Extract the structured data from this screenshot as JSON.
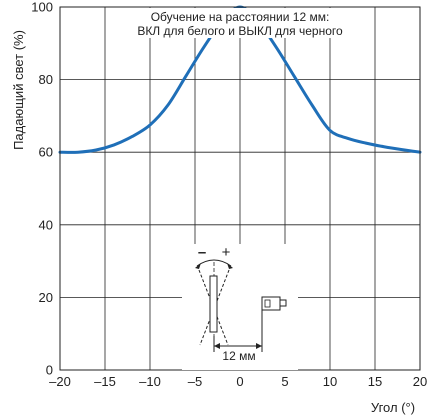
{
  "chart_data": {
    "type": "line",
    "title": "",
    "annotation_lines": [
      "Обучение на расстоянии 12 мм:",
      "ВКЛ для белого и ВЫКЛ для черного"
    ],
    "xlabel": "Угол (°)",
    "ylabel": "Падающий свет (%)",
    "xlim": [
      -20,
      20
    ],
    "ylim": [
      0,
      100
    ],
    "xticks": [
      -20,
      -15,
      -10,
      -5,
      0,
      5,
      10,
      15,
      20
    ],
    "yticks": [
      0,
      20,
      40,
      60,
      80,
      100
    ],
    "xtick_labels": [
      "–20",
      "–15",
      "–10",
      "–5",
      "0",
      "5",
      "10",
      "15",
      "20"
    ],
    "ytick_labels": [
      "0",
      "20",
      "40",
      "60",
      "80",
      "100"
    ],
    "grid": true,
    "series": [
      {
        "color": "#1f6fb8",
        "x": [
          -20,
          -18,
          -16,
          -14,
          -12,
          -10,
          -8,
          -6,
          -4,
          -2,
          0,
          2,
          4,
          6,
          8,
          10,
          12,
          14,
          16,
          18,
          20
        ],
        "y": [
          60,
          60,
          60.6,
          62,
          64.3,
          67.5,
          73,
          81,
          89,
          96,
          100,
          96,
          89,
          81,
          73,
          66,
          63.8,
          62.5,
          61.5,
          60.7,
          60
        ]
      }
    ],
    "inset": {
      "minus_label": "–",
      "plus_label": "+",
      "distance_label": "12 мм"
    }
  }
}
